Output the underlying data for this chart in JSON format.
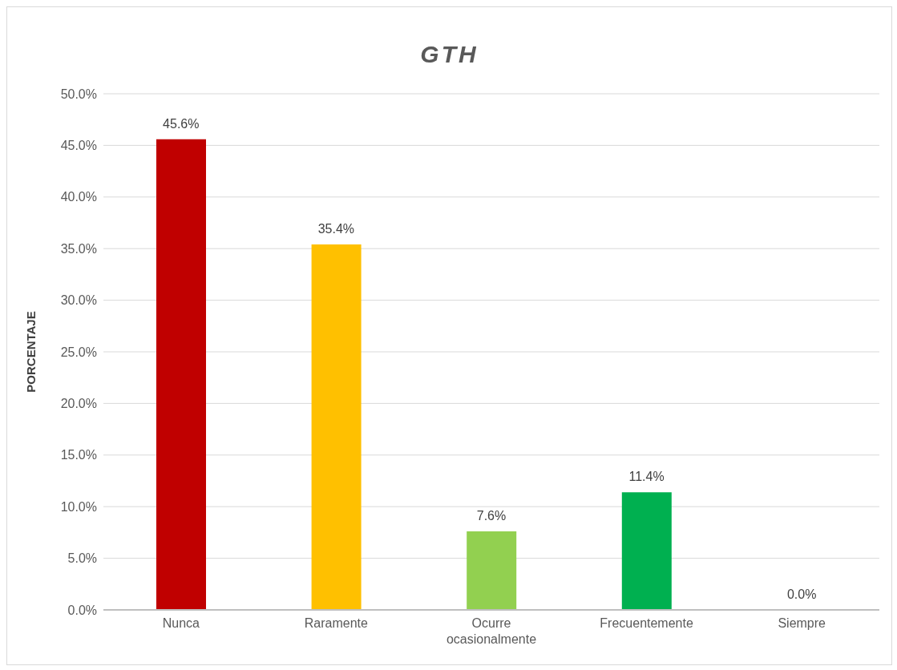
{
  "chart_data": {
    "type": "bar",
    "title": "GTH",
    "ylabel": "PORCENTAJE",
    "categories": [
      "Nunca",
      "Raramente",
      "Ocurre ocasionalmente",
      "Frecuentemente",
      "Siempre"
    ],
    "values": [
      45.6,
      35.4,
      7.6,
      11.4,
      0.0
    ],
    "colors": [
      "#c00000",
      "#ffc000",
      "#92d050",
      "#00b050",
      "#00b0f0"
    ],
    "value_labels": [
      "45.6%",
      "35.4%",
      "7.6%",
      "11.4%",
      "0.0%"
    ],
    "ylim": [
      0,
      50
    ],
    "yticks": [
      {
        "value": 0,
        "label": "0.0%"
      },
      {
        "value": 5,
        "label": "5.0%"
      },
      {
        "value": 10,
        "label": "10.0%"
      },
      {
        "value": 15,
        "label": "15.0%"
      },
      {
        "value": 20,
        "label": "20.0%"
      },
      {
        "value": 25,
        "label": "25.0%"
      },
      {
        "value": 30,
        "label": "30.0%"
      },
      {
        "value": 35,
        "label": "35.0%"
      },
      {
        "value": 40,
        "label": "40.0%"
      },
      {
        "value": 45,
        "label": "45.0%"
      },
      {
        "value": 50,
        "label": "50.0%"
      }
    ],
    "grid": "y",
    "legend": false
  }
}
